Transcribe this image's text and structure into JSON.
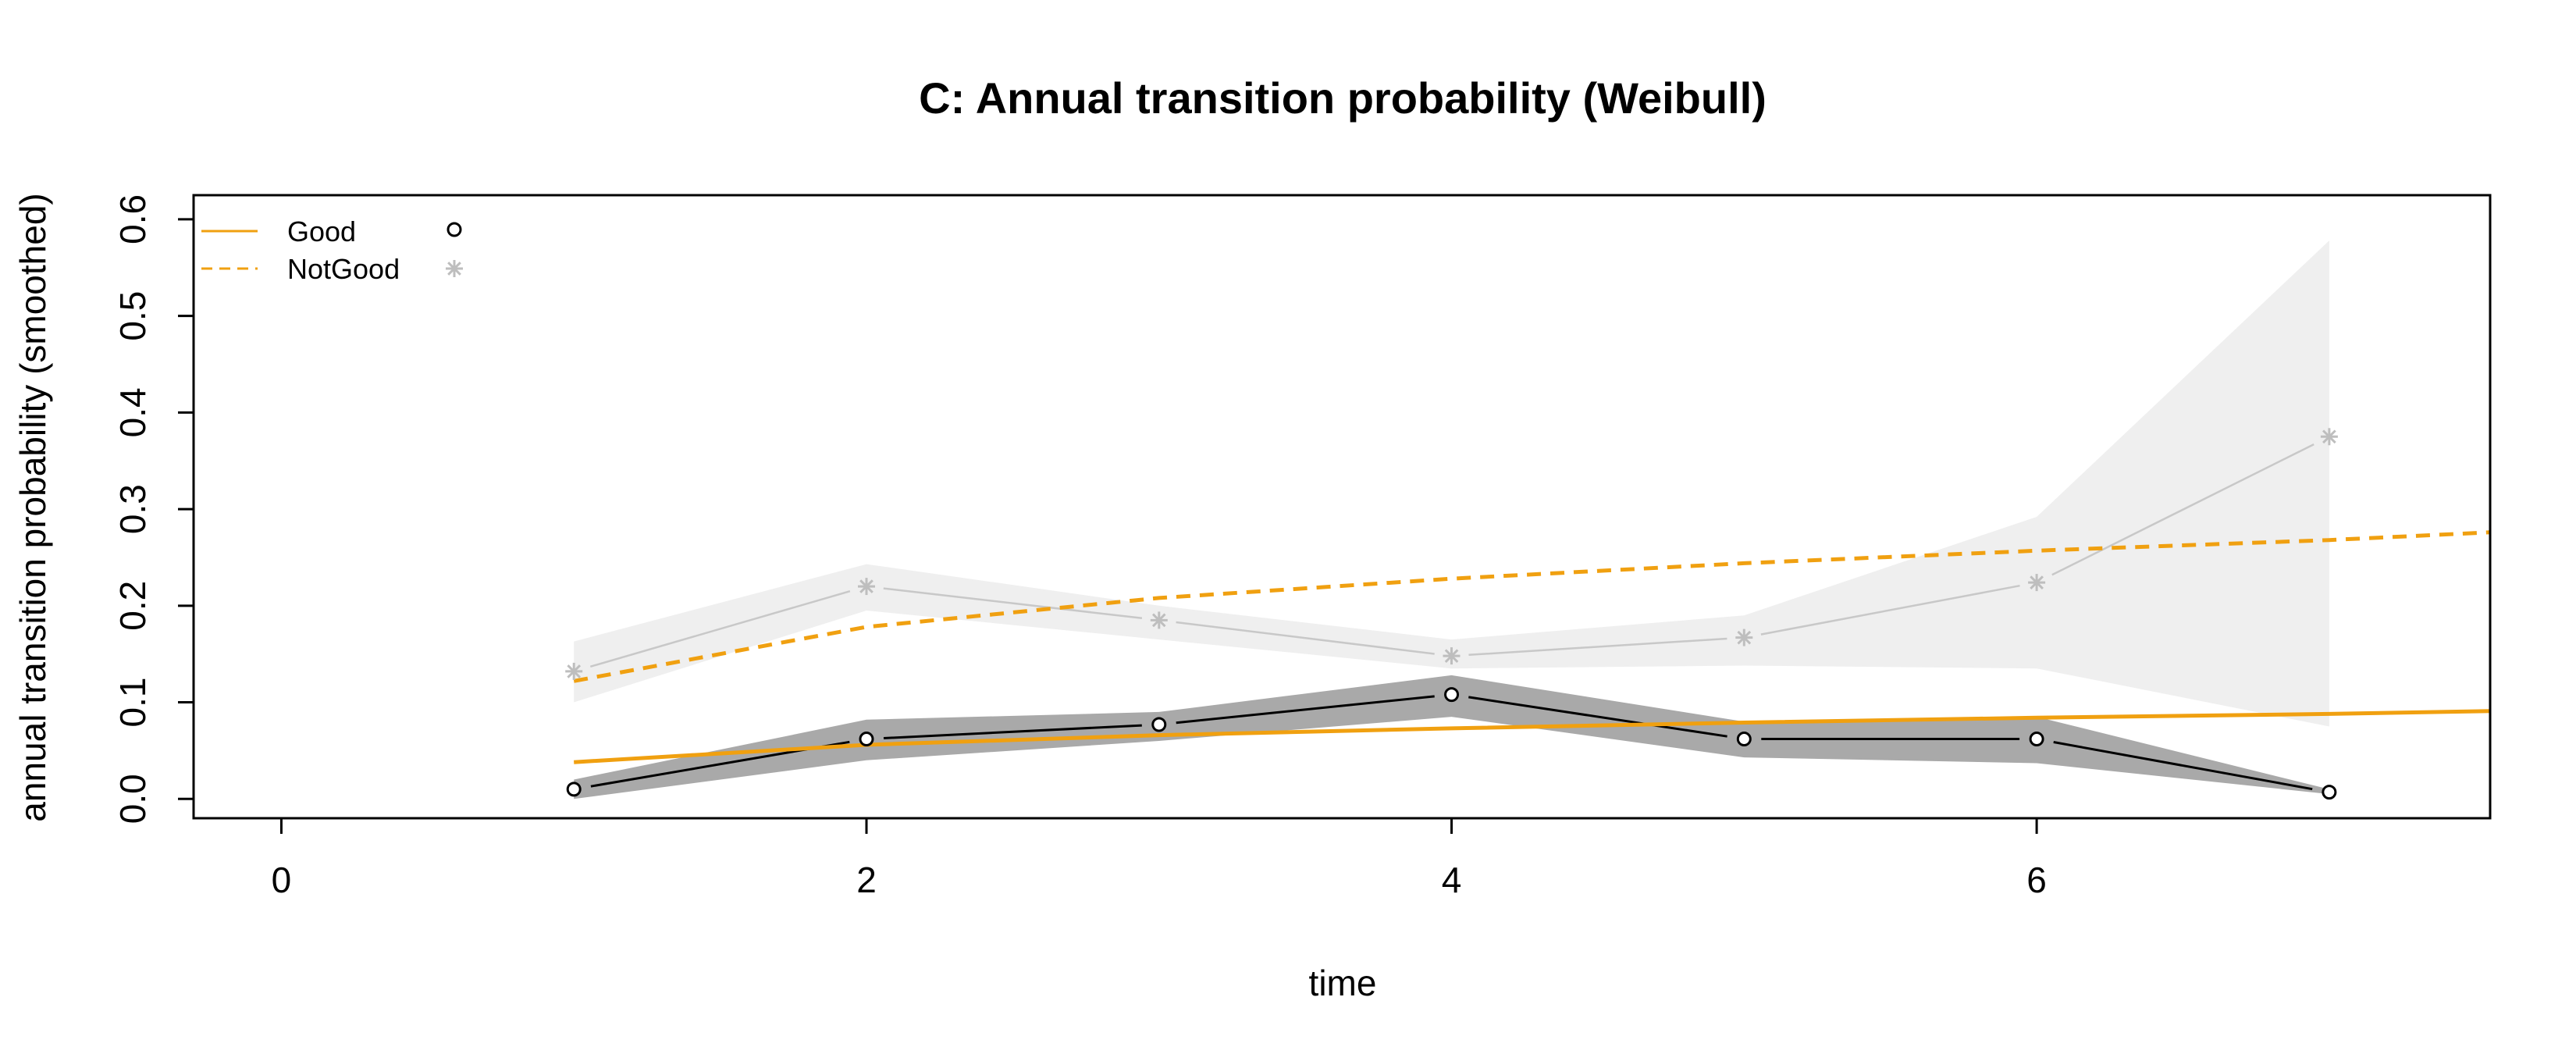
{
  "chart_data": {
    "type": "line",
    "title": "C: Annual transition probability (Weibull)",
    "xlabel": "time",
    "ylabel": "annual transition probability (smoothed)",
    "xlim": [
      -0.3,
      7.55
    ],
    "ylim": [
      -0.02,
      0.625
    ],
    "x_ticks": [
      0,
      2,
      4,
      6
    ],
    "y_ticks": [
      0.0,
      0.1,
      0.2,
      0.3,
      0.4,
      0.5,
      0.6
    ],
    "x_tick_labels": [
      "0",
      "2",
      "4",
      "6"
    ],
    "y_tick_labels": [
      "0.0",
      "0.1",
      "0.2",
      "0.3",
      "0.4",
      "0.5",
      "0.6"
    ],
    "grid": false,
    "legend_position": "top-left",
    "legend": [
      {
        "label": "Good",
        "line_style": "solid",
        "line_color": "#F0A010",
        "marker": "circle",
        "marker_color": "#000000"
      },
      {
        "label": "NotGood",
        "line_style": "dashed",
        "line_color": "#F0A010",
        "marker": "asterisk",
        "marker_color": "#BEBEBE"
      }
    ],
    "observed": [
      {
        "name": "Good",
        "marker": "circle",
        "line_color": "#000000",
        "band_color": "#A9A9A9",
        "x": [
          1,
          2,
          3,
          4,
          5,
          6,
          7
        ],
        "y": [
          0.01,
          0.062,
          0.077,
          0.108,
          0.062,
          0.062,
          0.007
        ],
        "lower": [
          0.0,
          0.04,
          0.06,
          0.085,
          0.043,
          0.037,
          0.005
        ],
        "upper": [
          0.02,
          0.082,
          0.09,
          0.128,
          0.08,
          0.085,
          0.01
        ]
      },
      {
        "name": "NotGood",
        "marker": "asterisk",
        "line_color": "#C8C8C8",
        "band_color": "#EFEFEF",
        "x": [
          1,
          2,
          3,
          4,
          5,
          6,
          7
        ],
        "y": [
          0.132,
          0.22,
          0.185,
          0.148,
          0.167,
          0.224,
          0.375
        ],
        "lower": [
          0.1,
          0.195,
          0.165,
          0.135,
          0.138,
          0.135,
          0.075
        ],
        "upper": [
          0.163,
          0.243,
          0.2,
          0.165,
          0.19,
          0.292,
          0.578
        ]
      }
    ],
    "fitted": [
      {
        "name": "Good",
        "line_style": "solid",
        "color": "#F0A010",
        "x": [
          1,
          2,
          3,
          4,
          5,
          6,
          7,
          7.55
        ],
        "y": [
          0.038,
          0.056,
          0.066,
          0.073,
          0.079,
          0.084,
          0.088,
          0.091
        ]
      },
      {
        "name": "NotGood",
        "line_style": "dashed",
        "color": "#F0A010",
        "x": [
          1,
          2,
          3,
          4,
          5,
          6,
          7,
          7.55
        ],
        "y": [
          0.122,
          0.178,
          0.208,
          0.228,
          0.244,
          0.257,
          0.268,
          0.276
        ]
      }
    ]
  }
}
